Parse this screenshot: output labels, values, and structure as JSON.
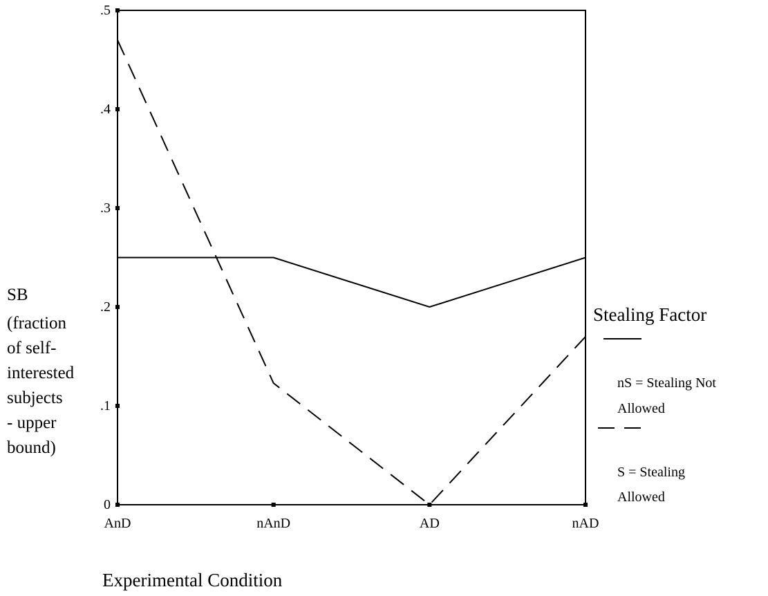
{
  "chart_data": {
    "type": "line",
    "categories": [
      "AnD",
      "nAnD",
      "AD",
      "nAD"
    ],
    "y_tick_labels": [
      ".5",
      ".4",
      ".3",
      ".2",
      ".1",
      "0"
    ],
    "y_tick_values": [
      0.5,
      0.4,
      0.3,
      0.2,
      0.1,
      0
    ],
    "ylim": [
      0,
      0.5
    ],
    "grid": false,
    "xlabel": "Experimental Condition",
    "ylabel_lines": [
      "SB",
      "(fraction",
      "of self-",
      "interested",
      "subjects",
      "- upper",
      "bound)"
    ],
    "legend": {
      "title": "Stealing Factor",
      "position": "right",
      "entries": [
        {
          "lines": [
            "nS = Stealing Not",
            "Allowed"
          ],
          "style": "solid"
        },
        {
          "lines": [
            "S = Stealing",
            "Allowed"
          ],
          "style": "dashed"
        }
      ]
    },
    "series": [
      {
        "values": [
          0.25,
          0.25,
          0.2,
          0.25
        ],
        "style": "solid",
        "color": "#000000"
      },
      {
        "values": [
          0.47,
          0.123,
          0.0,
          0.17
        ],
        "style": "dashed",
        "color": "#000000"
      }
    ]
  }
}
